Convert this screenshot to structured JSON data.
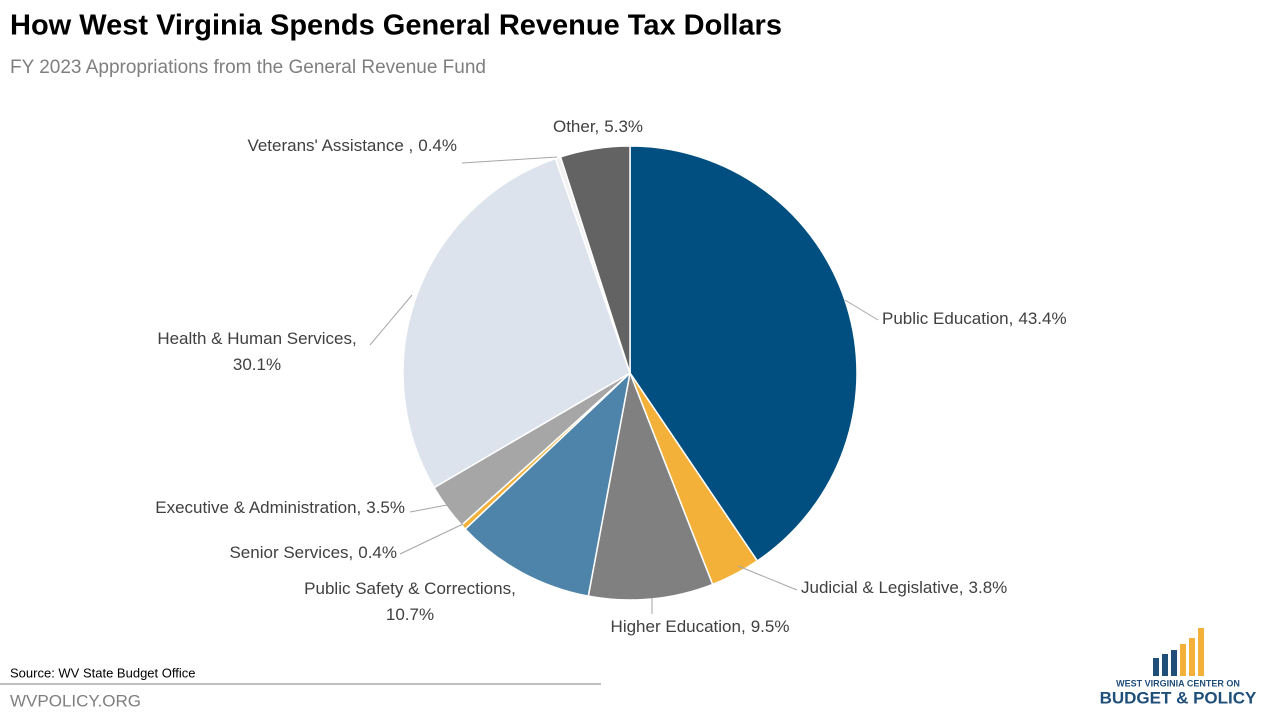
{
  "chart_data": {
    "type": "pie",
    "title": "How West Virginia Spends General Revenue Tax Dollars",
    "subtitle": "FY 2023 Appropriations from the General Revenue Fund",
    "categories": [
      "Public Education,",
      "Judicial & Legislative,",
      "Higher Education,",
      "Public Safety & Corrections,",
      "Senior Services,",
      "Executive & Administration,",
      "Health & Human Services,",
      "Veterans' Assistance ,",
      "Other,"
    ],
    "values": [
      43.4,
      3.8,
      9.5,
      10.7,
      0.4,
      3.5,
      30.1,
      0.4,
      5.3
    ],
    "value_labels": [
      "43.4%",
      "3.8%",
      "9.5%",
      "10.7%",
      "0.4%",
      "3.5%",
      "30.1%",
      "0.4%",
      "5.3%"
    ],
    "colors": [
      "#004f80",
      "#f4b13a",
      "#808080",
      "#4f84aa",
      "#f4b13a",
      "#a6a6a6",
      "#dce3ec",
      "#f2f2f2",
      "#636363"
    ],
    "source": "Source: WV State Budget Office"
  },
  "footer": {
    "site": "WVPOLICY.ORG",
    "logo_top": "WEST VIRGINIA CENTER ON",
    "logo_bottom": "BUDGET & POLICY"
  }
}
